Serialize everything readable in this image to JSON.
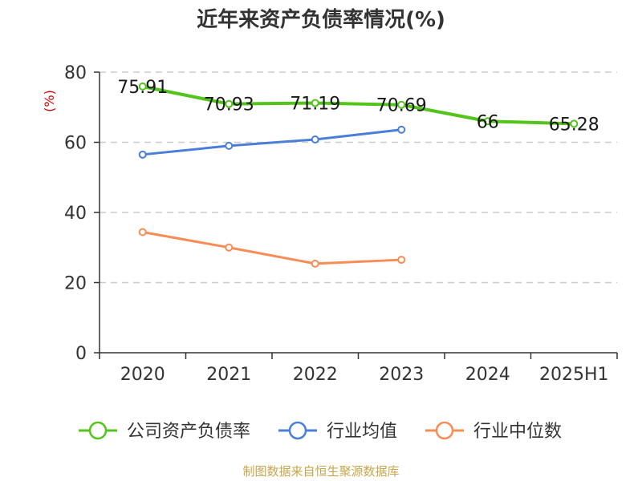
{
  "chart_data": {
    "type": "line",
    "title": "近年来资产负债率情况(%)",
    "ylabel": "(%)",
    "categories": [
      "2020",
      "2021",
      "2022",
      "2023",
      "2024",
      "2025H1"
    ],
    "yticks": [
      "0",
      "20",
      "40",
      "60",
      "80"
    ],
    "ylim": [
      0,
      80
    ],
    "grid": true,
    "legend_position": "bottom",
    "series": [
      {
        "name": "公司资产负债率",
        "color": "#52c41a",
        "values": [
          75.91,
          70.93,
          71.19,
          70.69,
          66,
          65.28
        ],
        "labels": [
          "75.91",
          "70.93",
          "71.19",
          "70.69",
          "66",
          "65.28"
        ]
      },
      {
        "name": "行业均值",
        "color": "#4a7fd9",
        "values": [
          56.5,
          59,
          60.8,
          63.6,
          null,
          null
        ]
      },
      {
        "name": "行业中位数",
        "color": "#f98c55",
        "values": [
          34.4,
          30,
          25.4,
          26.5,
          null,
          null
        ]
      }
    ],
    "unit_color": "#cc0000"
  },
  "source": "制图数据来自恒生聚源数据库",
  "source_color": "#c8a64b"
}
